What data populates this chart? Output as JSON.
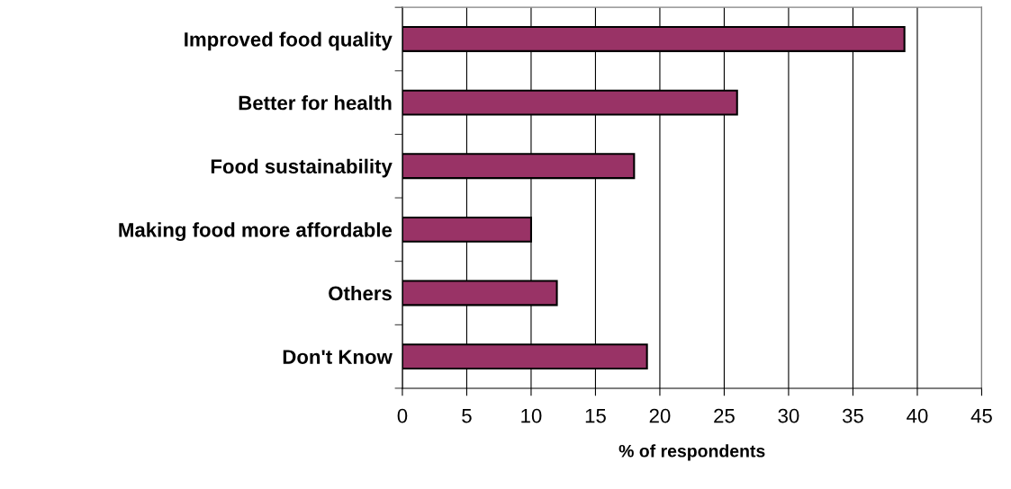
{
  "chart_data": {
    "type": "bar",
    "orientation": "horizontal",
    "xlabel": "% of respondents",
    "categories": [
      "Improved food quality",
      "Better for health",
      "Food sustainability",
      "Making food more affordable",
      "Others",
      "Don't Know"
    ],
    "values": [
      39,
      26,
      18,
      10,
      12,
      19
    ],
    "color": "#993366",
    "xlim": [
      0,
      45
    ],
    "xticks": [
      0,
      5,
      10,
      15,
      20,
      25,
      30,
      35,
      40,
      45
    ],
    "grid": "x"
  }
}
